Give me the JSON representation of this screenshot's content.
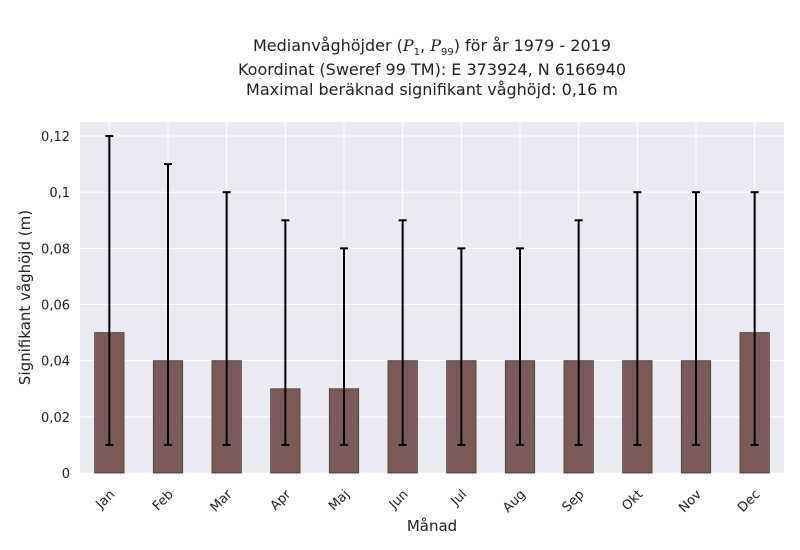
{
  "chart_data": {
    "type": "bar",
    "title_prefix": "Medianvåghöjder (",
    "title_p_low": "P",
    "title_p_low_sub": "1",
    "title_p_high": "P",
    "title_p_high_sub": "99",
    "title_suffix": ") för år 1979 - 2019",
    "subtitle_coords": "Koordinat (Sweref 99 TM): E 373924, N 6166940",
    "subtitle_max": "Maximal beräknad signifikant våghöjd: 0,16 m",
    "xlabel": "Månad",
    "ylabel": "Signifikant våghöjd (m)",
    "categories": [
      "Jan",
      "Feb",
      "Mar",
      "Apr",
      "Maj",
      "Jun",
      "Jul",
      "Aug",
      "Sep",
      "Okt",
      "Nov",
      "Dec"
    ],
    "values": [
      0.05,
      0.04,
      0.04,
      0.03,
      0.03,
      0.04,
      0.04,
      0.04,
      0.04,
      0.04,
      0.04,
      0.05
    ],
    "p1": [
      0.01,
      0.01,
      0.01,
      0.01,
      0.01,
      0.01,
      0.01,
      0.01,
      0.01,
      0.01,
      0.01,
      0.01
    ],
    "p99": [
      0.12,
      0.11,
      0.1,
      0.09,
      0.08,
      0.09,
      0.08,
      0.08,
      0.09,
      0.1,
      0.1,
      0.1
    ],
    "ylim": [
      0,
      0.125
    ],
    "yticks": [
      0,
      0.02,
      0.04,
      0.06,
      0.08,
      0.1,
      0.12
    ],
    "ytick_labels": [
      "0",
      "0,02",
      "0,04",
      "0,06",
      "0,08",
      "0,1",
      "0,12"
    ],
    "grid": true,
    "colors": {
      "bar": "#7b5a5a",
      "bar_edge": "#4a3434",
      "errorbar": "#000000",
      "background": "#eaeaf2",
      "grid": "#ffffff"
    }
  }
}
